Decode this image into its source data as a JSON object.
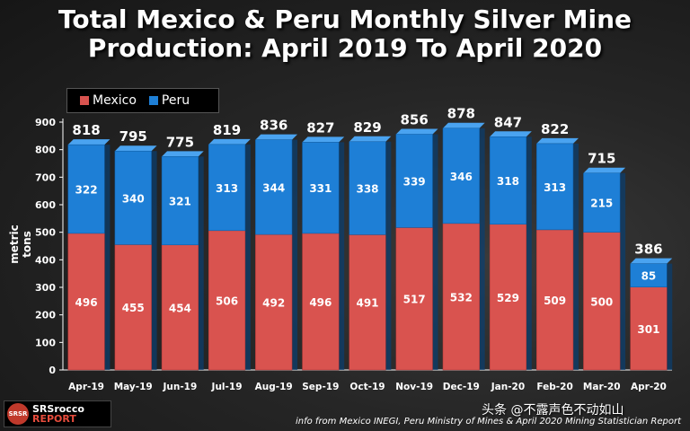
{
  "title": "Total Mexico & Peru Monthly Silver Mine Production: April 2019 To April 2020",
  "source_text": "info from Mexico INEGI, Peru Ministry of Mines & April 2020 Mining Statistician Report",
  "watermark": "头条 @不露声色不动如山",
  "logo": {
    "line1": "SRSrocco",
    "line2": "REPORT",
    "badge": "SRSR"
  },
  "colors": {
    "mexico": "#d9534f",
    "peru": "#1e7fd6",
    "background": "#1a1a1a",
    "text": "#ffffff"
  },
  "chart_data": {
    "type": "bar",
    "stacked": true,
    "ylabel": "metric tons",
    "ylim": [
      0,
      900
    ],
    "yticks": [
      0,
      100,
      200,
      300,
      400,
      500,
      600,
      700,
      800,
      900
    ],
    "categories": [
      "Apr-19",
      "May-19",
      "Jun-19",
      "Jul-19",
      "Aug-19",
      "Sep-19",
      "Oct-19",
      "Nov-19",
      "Dec-19",
      "Jan-20",
      "Feb-20",
      "Mar-20",
      "Apr-20"
    ],
    "series": [
      {
        "name": "Mexico",
        "values": [
          496,
          455,
          454,
          506,
          492,
          496,
          491,
          517,
          532,
          529,
          509,
          500,
          301
        ]
      },
      {
        "name": "Peru",
        "values": [
          322,
          340,
          321,
          313,
          344,
          331,
          338,
          339,
          346,
          318,
          313,
          215,
          85
        ]
      }
    ],
    "totals": [
      818,
      795,
      775,
      819,
      836,
      827,
      829,
      856,
      878,
      847,
      822,
      715,
      386
    ],
    "legend_position": "top-left",
    "grid": false
  }
}
